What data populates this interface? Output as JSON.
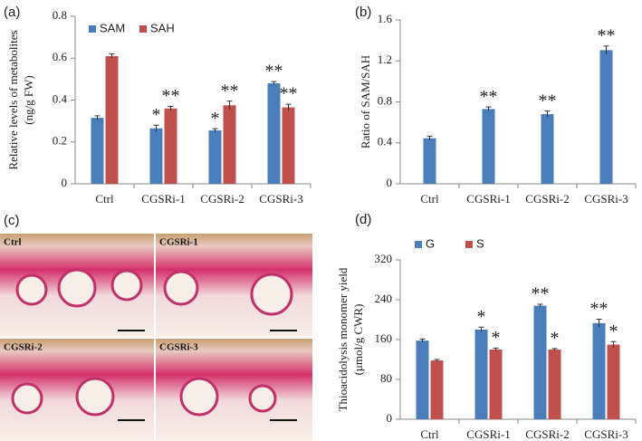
{
  "chart_data": [
    {
      "type": "bar",
      "panel_label": "(a)",
      "ylabel": [
        "Relative levels of metabolites",
        "(ng/g FW)"
      ],
      "categories": [
        "Ctrl",
        "CGSRi-1",
        "CGSRi-2",
        "CGSRi-3"
      ],
      "series": [
        {
          "name": "SAM",
          "color": "#4a7ebb",
          "values": [
            0.315,
            0.265,
            0.255,
            0.48
          ],
          "errors": [
            0.01,
            0.015,
            0.008,
            0.008
          ],
          "annotations": [
            null,
            "*",
            "*",
            "**"
          ]
        },
        {
          "name": "SAH",
          "color": "#c0504d",
          "values": [
            0.61,
            0.36,
            0.375,
            0.365
          ],
          "errors": [
            0.01,
            0.01,
            0.02,
            0.015
          ],
          "annotations": [
            null,
            "**",
            "**",
            "**"
          ]
        }
      ],
      "ylim": [
        0,
        0.8
      ],
      "yticks": [
        0,
        0.2,
        0.4,
        0.6,
        0.8
      ],
      "legend": "top-left"
    },
    {
      "type": "bar",
      "panel_label": "(b)",
      "ylabel": [
        "Ratio of SAM/SAH"
      ],
      "categories": [
        "Ctrl",
        "CGSRi-1",
        "CGSRi-2",
        "CGSRi-3"
      ],
      "values": [
        0.445,
        0.73,
        0.68,
        1.305
      ],
      "errors": [
        0.02,
        0.02,
        0.03,
        0.04
      ],
      "annotations": [
        null,
        "**",
        "**",
        "**"
      ],
      "color": "#4a7ebb",
      "ylim": [
        0,
        1.6
      ],
      "yticks": [
        0,
        0.4,
        0.8,
        1.2,
        1.6
      ]
    },
    {
      "type": "bar",
      "panel_label": "(d)",
      "ylabel": [
        "Thioacidolysis monomer yield",
        "(μmol/g CWR)"
      ],
      "categories": [
        "Ctrl",
        "CGSRi-1",
        "CGSRi-2",
        "CGSRi-3"
      ],
      "series": [
        {
          "name": "G",
          "color": "#4a7ebb",
          "values": [
            158,
            180,
            228,
            193
          ],
          "errors": [
            3,
            5,
            3,
            8
          ],
          "annotations": [
            null,
            "*",
            "**",
            "**"
          ]
        },
        {
          "name": "S",
          "color": "#c0504d",
          "values": [
            118,
            140,
            140,
            150
          ],
          "errors": [
            2,
            3,
            2,
            6
          ],
          "annotations": [
            null,
            "*",
            "*",
            "*"
          ]
        }
      ],
      "ylim": [
        0,
        320
      ],
      "yticks": [
        0,
        80,
        160,
        240,
        320
      ],
      "legend": "top-left"
    }
  ],
  "micrograph": {
    "panel_label": "(c)",
    "tiles": [
      "Ctrl",
      "CGSRi-1",
      "CGSRi-2",
      "CGSRi-3"
    ]
  }
}
